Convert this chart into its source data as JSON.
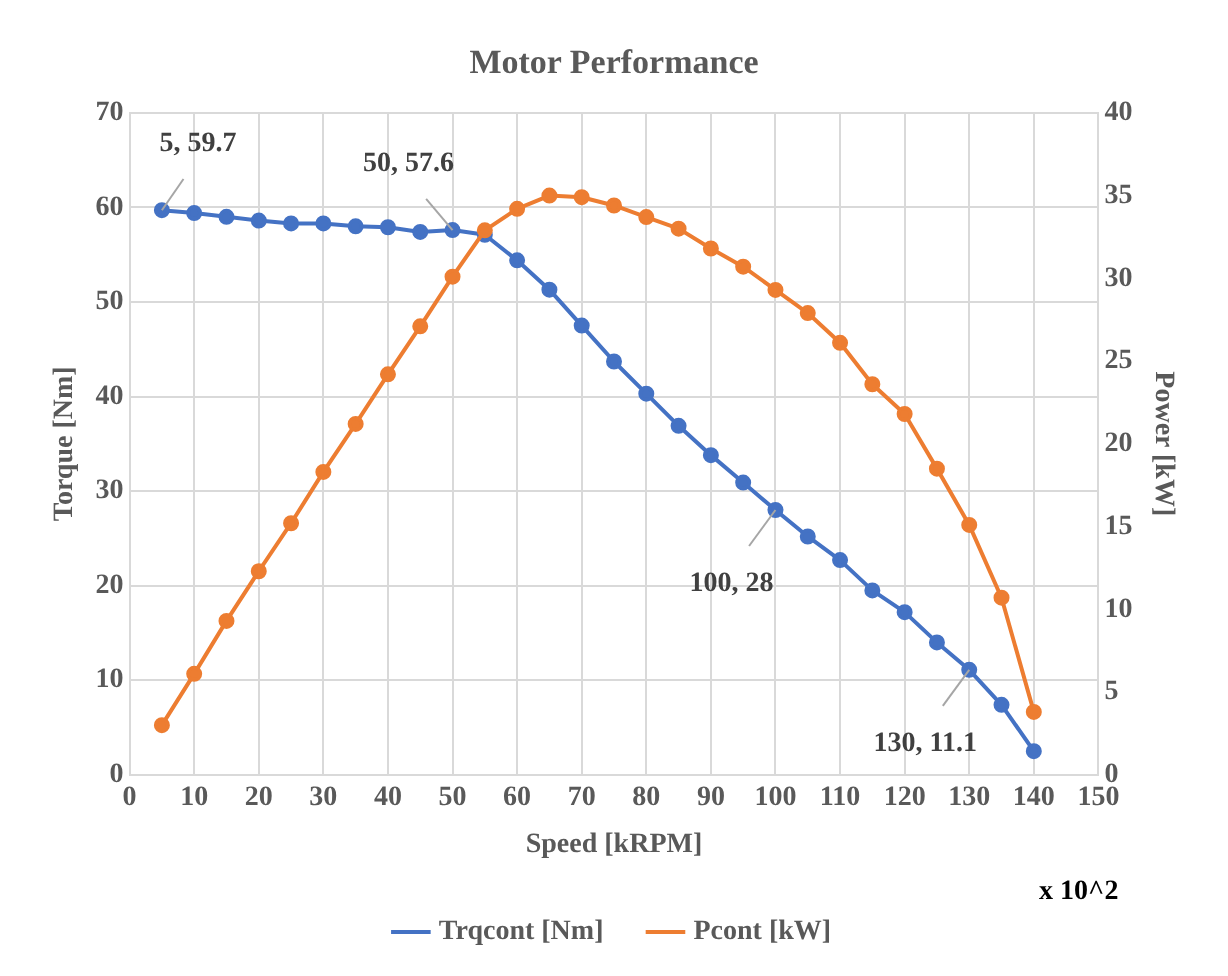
{
  "chart_data": {
    "type": "line",
    "title": "Motor Performance",
    "xlabel": "Speed [kRPM]",
    "ylabel": "Torque [Nm]",
    "y2label": "Power [kW]",
    "x": [
      5,
      10,
      15,
      20,
      25,
      30,
      35,
      40,
      45,
      50,
      55,
      60,
      65,
      70,
      75,
      80,
      85,
      90,
      95,
      100,
      105,
      110,
      115,
      120,
      125,
      130,
      135,
      140
    ],
    "series": [
      {
        "name": "Trqcont [Nm]",
        "color": "#4472c4",
        "values": [
          59.7,
          59.4,
          59.0,
          58.6,
          58.3,
          58.3,
          58.0,
          57.9,
          57.4,
          57.6,
          57.1,
          54.4,
          51.3,
          47.5,
          43.7,
          40.3,
          36.9,
          33.8,
          30.9,
          28,
          25.2,
          22.7,
          19.5,
          17.2,
          14.0,
          11.1,
          7.4,
          2.5
        ]
      },
      {
        "name": "Pcont [kW]",
        "color": "#ed7d31",
        "axis": "y2",
        "values": [
          3.0,
          6.1,
          9.3,
          12.3,
          15.2,
          18.3,
          21.2,
          24.2,
          27.1,
          30.1,
          32.9,
          34.2,
          35.0,
          34.9,
          34.4,
          33.7,
          33.0,
          31.8,
          30.7,
          29.3,
          27.9,
          26.1,
          23.6,
          21.8,
          18.5,
          15.1,
          10.7,
          3.8
        ]
      }
    ],
    "xlim": [
      0,
      150
    ],
    "xticks": [
      0,
      10,
      20,
      30,
      40,
      50,
      60,
      70,
      80,
      90,
      100,
      110,
      120,
      130,
      140,
      150
    ],
    "ylim": [
      0,
      70
    ],
    "yticks": [
      0,
      10,
      20,
      30,
      40,
      50,
      60,
      70
    ],
    "y2lim": [
      0,
      40
    ],
    "y2ticks": [
      0,
      5,
      10,
      15,
      20,
      25,
      30,
      35,
      40
    ],
    "annotations": [
      {
        "text": "5, 59.7",
        "x": 5,
        "y": 59.7
      },
      {
        "text": "50, 57.6",
        "x": 50,
        "y": 57.6
      },
      {
        "text": "100, 28",
        "x": 100,
        "y": 28
      },
      {
        "text": "130, 11.1",
        "x": 130,
        "y": 11.1
      },
      "x 10^2"
    ],
    "grid": true,
    "legend": "bottom",
    "marker": "circle",
    "line_style": "solid"
  }
}
